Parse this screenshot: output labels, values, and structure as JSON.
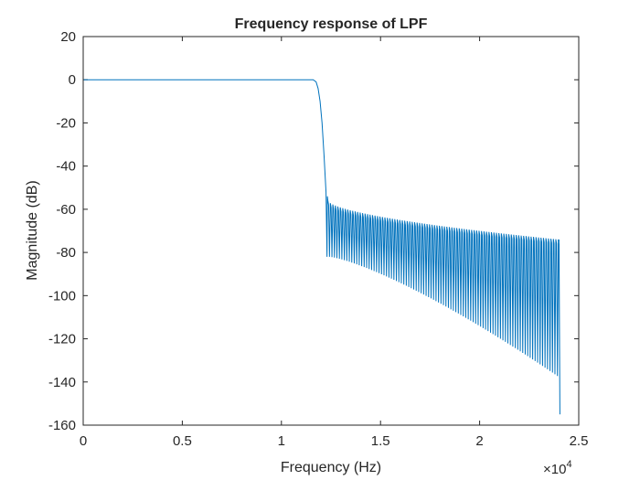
{
  "chart_data": {
    "type": "line",
    "title": "Frequency response of LPF",
    "xlabel": "Frequency (Hz)",
    "ylabel": "Magnitude (dB)",
    "x_multiplier_base": "×10",
    "x_multiplier_exp": "4",
    "xlim": [
      0,
      25000
    ],
    "ylim": [
      -160,
      20
    ],
    "x_ticks": [
      0,
      5000,
      10000,
      15000,
      20000,
      25000
    ],
    "x_tick_labels": [
      "0",
      "0.5",
      "1",
      "1.5",
      "2",
      "2.5"
    ],
    "y_ticks": [
      20,
      0,
      -20,
      -40,
      -60,
      -80,
      -100,
      -120,
      -140,
      -160
    ],
    "y_tick_labels": [
      "20",
      "0",
      "-20",
      "-40",
      "-60",
      "-80",
      "-100",
      "-120",
      "-140",
      "-160"
    ],
    "grid": false,
    "box": true,
    "line_color": "#0072BD",
    "series": [
      {
        "passband": {
          "x_start": 0,
          "x_end": 11600,
          "value_db": 0
        },
        "transition": [
          {
            "x": 11600,
            "y": 0
          },
          {
            "x": 11750,
            "y": -1
          },
          {
            "x": 11850,
            "y": -4
          },
          {
            "x": 11950,
            "y": -10
          },
          {
            "x": 12050,
            "y": -20
          },
          {
            "x": 12150,
            "y": -35
          },
          {
            "x": 12250,
            "y": -52
          },
          {
            "x": 12300,
            "y": -82
          }
        ],
        "stopband": {
          "x_start": 12300,
          "x_end": 24000,
          "ripple_period_hz": 125,
          "peaks_start_db": -56,
          "peaks_end_db": -74,
          "nulls_start_db": -82,
          "nulls_end_db": -138,
          "last_null_db": -155
        }
      }
    ]
  }
}
